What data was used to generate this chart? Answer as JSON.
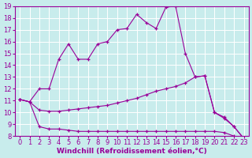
{
  "bg_color": "#c8ecec",
  "grid_color": "#ffffff",
  "line_color": "#990099",
  "xlabel": "Windchill (Refroidissement éolien,°C)",
  "xlim": [
    -0.5,
    23.5
  ],
  "ylim": [
    8,
    19
  ],
  "yticks": [
    8,
    9,
    10,
    11,
    12,
    13,
    14,
    15,
    16,
    17,
    18,
    19
  ],
  "xticks": [
    0,
    1,
    2,
    3,
    4,
    5,
    6,
    7,
    8,
    9,
    10,
    11,
    12,
    13,
    14,
    15,
    16,
    17,
    18,
    19,
    20,
    21,
    22,
    23
  ],
  "series": [
    {
      "x": [
        0,
        1,
        2,
        3,
        4,
        5,
        6,
        7,
        8,
        9,
        10,
        11,
        12,
        13,
        14,
        15,
        16,
        17,
        18,
        19,
        20,
        21,
        22,
        23
      ],
      "y": [
        11.1,
        10.9,
        8.8,
        8.6,
        8.6,
        8.5,
        8.4,
        8.4,
        8.4,
        8.4,
        8.4,
        8.4,
        8.4,
        8.4,
        8.4,
        8.4,
        8.4,
        8.4,
        8.4,
        8.4,
        8.4,
        8.3,
        8.0,
        7.8
      ]
    },
    {
      "x": [
        0,
        1,
        2,
        3,
        4,
        5,
        6,
        7,
        8,
        9,
        10,
        11,
        12,
        13,
        14,
        15,
        16,
        17,
        18,
        19,
        20,
        21,
        22,
        23
      ],
      "y": [
        11.1,
        10.9,
        10.2,
        10.1,
        10.1,
        10.2,
        10.3,
        10.4,
        10.5,
        10.6,
        10.8,
        11.0,
        11.2,
        11.5,
        11.8,
        12.0,
        12.2,
        12.5,
        13.0,
        13.1,
        10.0,
        9.5,
        8.8,
        7.8
      ]
    },
    {
      "x": [
        0,
        1,
        2,
        3,
        4,
        5,
        6,
        7,
        8,
        9,
        10,
        11,
        12,
        13,
        14,
        15,
        16,
        17,
        18,
        19,
        20,
        21,
        22,
        23
      ],
      "y": [
        11.1,
        10.9,
        12.0,
        12.0,
        14.5,
        15.8,
        14.5,
        14.5,
        15.8,
        16.0,
        17.0,
        17.1,
        18.3,
        17.6,
        17.1,
        18.9,
        19.0,
        15.0,
        13.0,
        13.1,
        10.0,
        9.6,
        8.8,
        7.8
      ]
    }
  ],
  "axis_fontsize": 6.5,
  "tick_fontsize": 6
}
